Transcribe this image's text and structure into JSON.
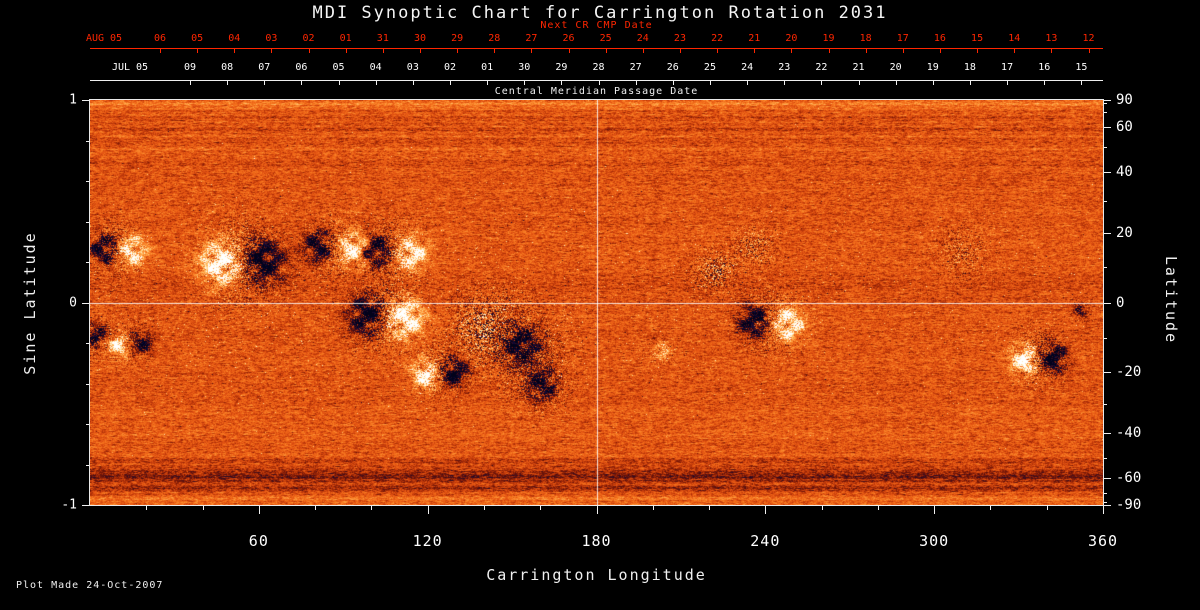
{
  "title": "MDI Synoptic Chart for Carrington Rotation 2031",
  "footer": {
    "plot_made": "Plot Made 24-Oct-2007"
  },
  "colors": {
    "background": "#000000",
    "next_cr_axis": "#ff2600",
    "axis": "#ffffff"
  },
  "chart_data": {
    "type": "heatmap",
    "title": "MDI Synoptic Chart for Carrington Rotation 2031",
    "xlabel": "Carrington Longitude",
    "ylabel_left": "Sine Latitude",
    "ylabel_right": "Latitude",
    "x_range": [
      0,
      360
    ],
    "x_major_ticks": [
      60,
      120,
      180,
      240,
      300,
      360
    ],
    "x_minor_step": 20,
    "y_sine_range": [
      -1,
      1
    ],
    "y_sine_major_ticks": [
      "1",
      "0",
      "-1"
    ],
    "y_sine_minor_ticks": [
      0.8,
      0.6,
      0.4,
      0.2,
      -0.2,
      -0.4,
      -0.6,
      -0.8
    ],
    "y_latitude_major_ticks": [
      90,
      60,
      40,
      20,
      0,
      -20,
      -40,
      -60,
      -90
    ],
    "y_latitude_minor_ticks": [
      80,
      70,
      50,
      30,
      10,
      -10,
      -30,
      -50,
      -70,
      -80
    ],
    "grid": {
      "vertical_longitude": 180,
      "horizontal_sine_latitude": 0
    },
    "top_axis_next_cr": {
      "label": "Next CR CMP Date",
      "month_label": "AUG 05",
      "day_ticks": [
        "06",
        "05",
        "04",
        "03",
        "02",
        "01",
        "31",
        "30",
        "29",
        "28",
        "27",
        "26",
        "25",
        "24",
        "23",
        "22",
        "21",
        "20",
        "19",
        "18",
        "17",
        "16",
        "15",
        "14",
        "13",
        "12"
      ]
    },
    "top_axis_cmp": {
      "label": "Central Meridian Passage Date",
      "month_label": "JUL 05",
      "day_ticks": [
        "09",
        "08",
        "07",
        "06",
        "05",
        "04",
        "03",
        "02",
        "01",
        "30",
        "29",
        "28",
        "27",
        "26",
        "25",
        "24",
        "23",
        "22",
        "21",
        "20",
        "19",
        "18",
        "17",
        "16",
        "15"
      ]
    },
    "colormap": {
      "stops": [
        [
          0.0,
          "#000012"
        ],
        [
          0.1,
          "#0a0a3c"
        ],
        [
          0.2,
          "#2c0a24"
        ],
        [
          0.3,
          "#6e1408"
        ],
        [
          0.4,
          "#b43208"
        ],
        [
          0.5,
          "#e25212"
        ],
        [
          0.6,
          "#f4711c"
        ],
        [
          0.72,
          "#ffa040"
        ],
        [
          0.84,
          "#ffd488"
        ],
        [
          0.93,
          "#fff2cc"
        ],
        [
          1.0,
          "#ffffff"
        ]
      ]
    },
    "active_regions": [
      {
        "longitude": 10,
        "sine_latitude": 0.27,
        "radius_deg": 6,
        "polarity": "bipolar",
        "strength": 0.85
      },
      {
        "longitude": 14,
        "sine_latitude": -0.2,
        "radius_deg": 5,
        "polarity": "bipolar",
        "strength": 0.7,
        "lead": -1
      },
      {
        "longitude": 2,
        "sine_latitude": -0.16,
        "radius_deg": 5,
        "polarity": "negative",
        "strength": 0.7
      },
      {
        "longitude": 54,
        "sine_latitude": 0.21,
        "radius_deg": 9,
        "polarity": "bipolar",
        "strength": 1.0,
        "lead": -1
      },
      {
        "longitude": 87,
        "sine_latitude": 0.28,
        "radius_deg": 7,
        "polarity": "bipolar",
        "strength": 0.8
      },
      {
        "longitude": 108,
        "sine_latitude": 0.26,
        "radius_deg": 7,
        "polarity": "bipolar",
        "strength": 0.85
      },
      {
        "longitude": 105,
        "sine_latitude": -0.06,
        "radius_deg": 8,
        "polarity": "bipolar",
        "strength": 1.0
      },
      {
        "longitude": 124,
        "sine_latitude": -0.34,
        "radius_deg": 6,
        "polarity": "bipolar",
        "strength": 0.9,
        "lead": -1
      },
      {
        "longitude": 140,
        "sine_latitude": -0.12,
        "radius_deg": 10,
        "polarity": "mixed",
        "strength": 0.55
      },
      {
        "longitude": 153,
        "sine_latitude": -0.21,
        "radius_deg": 9,
        "polarity": "negative",
        "strength": 0.9
      },
      {
        "longitude": 160,
        "sine_latitude": -0.4,
        "radius_deg": 7,
        "polarity": "negative",
        "strength": 0.75
      },
      {
        "longitude": 203,
        "sine_latitude": -0.24,
        "radius_deg": 3,
        "polarity": "positive",
        "strength": 0.7
      },
      {
        "longitude": 222,
        "sine_latitude": 0.16,
        "radius_deg": 6,
        "polarity": "mixed",
        "strength": 0.5
      },
      {
        "longitude": 236,
        "sine_latitude": 0.28,
        "radius_deg": 6,
        "polarity": "mixed",
        "strength": 0.4
      },
      {
        "longitude": 242,
        "sine_latitude": -0.09,
        "radius_deg": 7,
        "polarity": "bipolar",
        "strength": 0.9
      },
      {
        "longitude": 310,
        "sine_latitude": 0.25,
        "radius_deg": 8,
        "polarity": "mixed",
        "strength": 0.3
      },
      {
        "longitude": 337,
        "sine_latitude": -0.27,
        "radius_deg": 6,
        "polarity": "bipolar",
        "strength": 1.0,
        "lead": -1
      },
      {
        "longitude": 352,
        "sine_latitude": -0.04,
        "radius_deg": 3,
        "polarity": "negative",
        "strength": 0.5
      }
    ],
    "activity_belt": {
      "sine_latitude_sigma": 0.32,
      "longitude_weights": [
        [
          0,
          175,
          1.0
        ],
        [
          175,
          265,
          0.75
        ],
        [
          265,
          360,
          0.45
        ]
      ]
    }
  }
}
